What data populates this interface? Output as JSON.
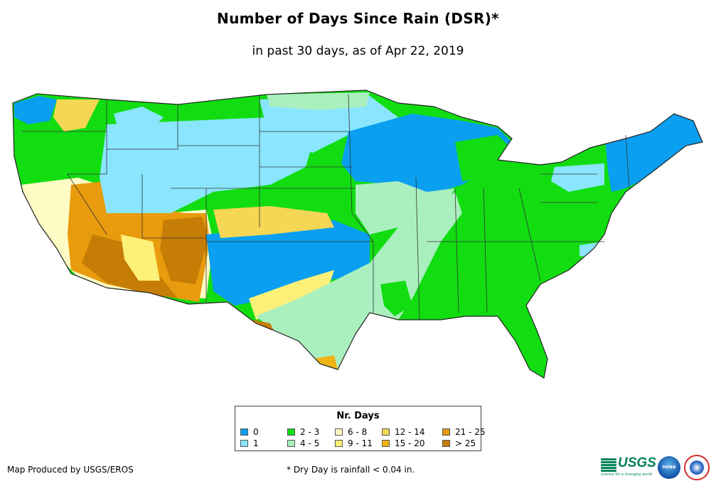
{
  "title": "Number of Days Since Rain (DSR)*",
  "subtitle": "in past 30 days, as of Apr 22, 2019",
  "legend": {
    "title": "Nr. Days",
    "items": [
      {
        "label": "0",
        "color": "#0a9ff0"
      },
      {
        "label": "1",
        "color": "#8ae6ff"
      },
      {
        "label": "2 - 3",
        "color": "#11dd11"
      },
      {
        "label": "4 - 5",
        "color": "#aaf0bf"
      },
      {
        "label": "6 - 8",
        "color": "#fffbc4"
      },
      {
        "label": "9 - 11",
        "color": "#fcf079"
      },
      {
        "label": "12 - 14",
        "color": "#f6d755"
      },
      {
        "label": "15 - 20",
        "color": "#f0b414"
      },
      {
        "label": "21 - 25",
        "color": "#e89b0d"
      },
      {
        "label": "> 25",
        "color": "#c67d06"
      }
    ]
  },
  "footer": {
    "producer": "Map Produced by USGS/EROS",
    "note": "* Dry Day is rainfall < 0.04 in."
  },
  "logos": {
    "usgs": "USGS",
    "usgs_tagline": "science for a changing world",
    "noaa": "noaa",
    "nws": "National Weather Service"
  }
}
